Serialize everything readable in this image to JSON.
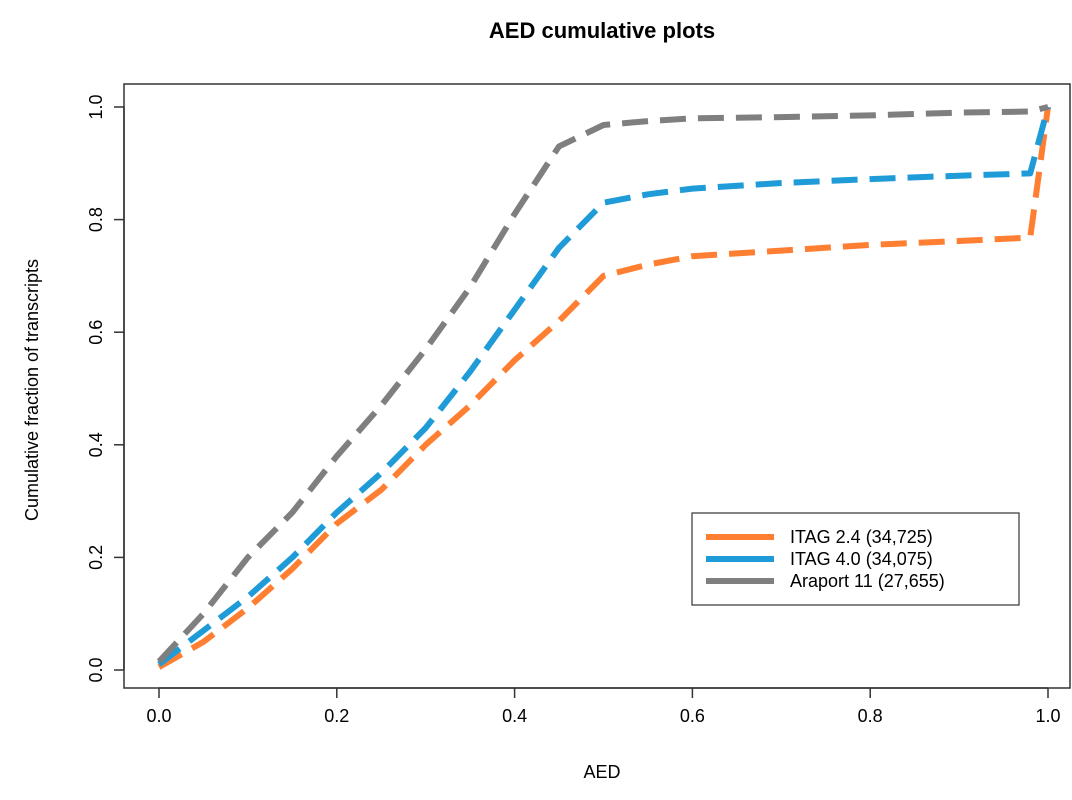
{
  "chart_data": {
    "type": "line",
    "title": "AED cumulative plots",
    "xlabel": "AED",
    "ylabel": "Cumulative fraction of transcripts",
    "xlim": [
      0,
      1
    ],
    "ylim": [
      0,
      1
    ],
    "x_ticks": [
      "0.0",
      "0.2",
      "0.4",
      "0.6",
      "0.8",
      "1.0"
    ],
    "y_ticks": [
      "0.0",
      "0.2",
      "0.4",
      "0.6",
      "0.8",
      "1.0"
    ],
    "legend_position": "right",
    "grid": false,
    "series": [
      {
        "name": "ITAG 2.4 (34,725)",
        "color": "#ff7f32",
        "points": [
          [
            0.0,
            0.005
          ],
          [
            0.05,
            0.05
          ],
          [
            0.1,
            0.11
          ],
          [
            0.15,
            0.18
          ],
          [
            0.2,
            0.26
          ],
          [
            0.25,
            0.32
          ],
          [
            0.3,
            0.4
          ],
          [
            0.35,
            0.47
          ],
          [
            0.4,
            0.55
          ],
          [
            0.45,
            0.62
          ],
          [
            0.5,
            0.7
          ],
          [
            0.55,
            0.72
          ],
          [
            0.6,
            0.735
          ],
          [
            0.7,
            0.745
          ],
          [
            0.8,
            0.755
          ],
          [
            0.9,
            0.762
          ],
          [
            0.98,
            0.768
          ],
          [
            1.0,
            1.0
          ]
        ]
      },
      {
        "name": "ITAG 4.0 (34,075)",
        "color": "#1f9bd8",
        "points": [
          [
            0.0,
            0.01
          ],
          [
            0.05,
            0.07
          ],
          [
            0.1,
            0.13
          ],
          [
            0.15,
            0.2
          ],
          [
            0.2,
            0.28
          ],
          [
            0.25,
            0.35
          ],
          [
            0.3,
            0.43
          ],
          [
            0.35,
            0.53
          ],
          [
            0.4,
            0.64
          ],
          [
            0.45,
            0.75
          ],
          [
            0.5,
            0.83
          ],
          [
            0.55,
            0.845
          ],
          [
            0.6,
            0.855
          ],
          [
            0.7,
            0.865
          ],
          [
            0.8,
            0.872
          ],
          [
            0.9,
            0.878
          ],
          [
            0.98,
            0.882
          ],
          [
            1.0,
            1.0
          ]
        ]
      },
      {
        "name": "Araport 11 (27,655)",
        "color": "#7f7f7f",
        "points": [
          [
            0.0,
            0.015
          ],
          [
            0.05,
            0.1
          ],
          [
            0.1,
            0.2
          ],
          [
            0.15,
            0.28
          ],
          [
            0.2,
            0.38
          ],
          [
            0.25,
            0.47
          ],
          [
            0.3,
            0.57
          ],
          [
            0.35,
            0.68
          ],
          [
            0.4,
            0.81
          ],
          [
            0.45,
            0.93
          ],
          [
            0.5,
            0.968
          ],
          [
            0.55,
            0.975
          ],
          [
            0.6,
            0.98
          ],
          [
            0.7,
            0.982
          ],
          [
            0.8,
            0.985
          ],
          [
            0.9,
            0.99
          ],
          [
            0.98,
            0.992
          ],
          [
            1.0,
            1.0
          ]
        ]
      }
    ]
  }
}
